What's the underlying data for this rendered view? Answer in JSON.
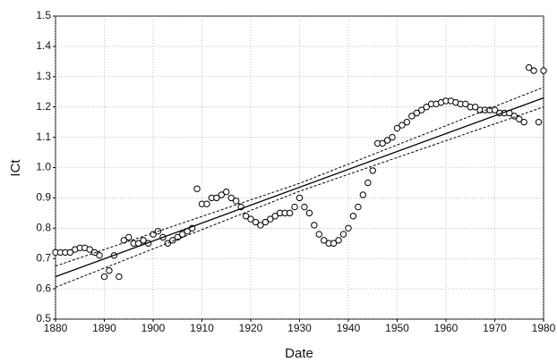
{
  "chart_data": {
    "type": "scatter",
    "xlabel": "Date",
    "ylabel": "ICt",
    "xlim": [
      1880,
      1980
    ],
    "xticks": [
      1880,
      1890,
      1900,
      1910,
      1920,
      1930,
      1940,
      1950,
      1960,
      1970,
      1980
    ],
    "ylim": [
      0.5,
      1.5
    ],
    "yticks": [
      0.5,
      0.6,
      0.7,
      0.8,
      0.9,
      {
        "value": 1,
        "label": "1.0"
      },
      1.1,
      1.2,
      1.3,
      1.4,
      1.5
    ],
    "grid": true,
    "series": [
      {
        "mark": "circle",
        "color": "#000000",
        "x": [
          1880,
          1881,
          1882,
          1883,
          1884,
          1885,
          1886,
          1887,
          1888,
          1889,
          1890,
          1891,
          1892,
          1893,
          1894,
          1895,
          1896,
          1897,
          1898,
          1899,
          1900,
          1901,
          1902,
          1903,
          1904,
          1905,
          1906,
          1907,
          1908,
          1909,
          1910,
          1911,
          1912,
          1913,
          1914,
          1915,
          1916,
          1917,
          1918,
          1919,
          1920,
          1921,
          1922,
          1923,
          1924,
          1925,
          1926,
          1927,
          1928,
          1929,
          1930,
          1931,
          1932,
          1933,
          1934,
          1935,
          1936,
          1937,
          1938,
          1939,
          1940,
          1941,
          1942,
          1943,
          1944,
          1945,
          1946,
          1947,
          1948,
          1949,
          1950,
          1951,
          1952,
          1953,
          1954,
          1955,
          1956,
          1957,
          1958,
          1959,
          1960,
          1961,
          1962,
          1963,
          1964,
          1965,
          1966,
          1967,
          1968,
          1969,
          1970,
          1971,
          1972,
          1973,
          1974,
          1975,
          1976,
          1977,
          1978,
          1979,
          1980
        ],
        "values": [
          0.72,
          0.72,
          0.72,
          0.72,
          0.73,
          0.735,
          0.735,
          0.73,
          0.72,
          0.71,
          0.64,
          0.66,
          0.71,
          0.64,
          0.76,
          0.77,
          0.75,
          0.75,
          0.76,
          0.75,
          0.78,
          0.79,
          0.77,
          0.75,
          0.76,
          0.77,
          0.78,
          0.79,
          0.8,
          0.93,
          0.88,
          0.88,
          0.9,
          0.9,
          0.91,
          0.92,
          0.9,
          0.89,
          0.87,
          0.84,
          0.83,
          0.82,
          0.81,
          0.82,
          0.83,
          0.84,
          0.85,
          0.85,
          0.85,
          0.87,
          0.9,
          0.87,
          0.85,
          0.81,
          0.78,
          0.76,
          0.75,
          0.75,
          0.76,
          0.78,
          0.8,
          0.84,
          0.87,
          0.91,
          0.95,
          0.99,
          1.08,
          1.08,
          1.09,
          1.1,
          1.13,
          1.14,
          1.15,
          1.17,
          1.18,
          1.19,
          1.2,
          1.21,
          1.21,
          1.215,
          1.22,
          1.22,
          1.215,
          1.21,
          1.21,
          1.2,
          1.2,
          1.19,
          1.19,
          1.19,
          1.19,
          1.18,
          1.18,
          1.18,
          1.17,
          1.16,
          1.15,
          1.33,
          1.32,
          1.15,
          1.32
        ]
      },
      {
        "mark": "solid",
        "color": "#000000",
        "x": [
          1880,
          1980
        ],
        "values": [
          0.64,
          1.23
        ]
      },
      {
        "mark": "dotted",
        "color": "#000000",
        "x": [
          1880,
          1930,
          1980
        ],
        "values": [
          0.675,
          0.948,
          1.265
        ]
      },
      {
        "mark": "dotted",
        "color": "#000000",
        "x": [
          1880,
          1930,
          1980
        ],
        "values": [
          0.605,
          0.922,
          1.2
        ]
      }
    ]
  }
}
